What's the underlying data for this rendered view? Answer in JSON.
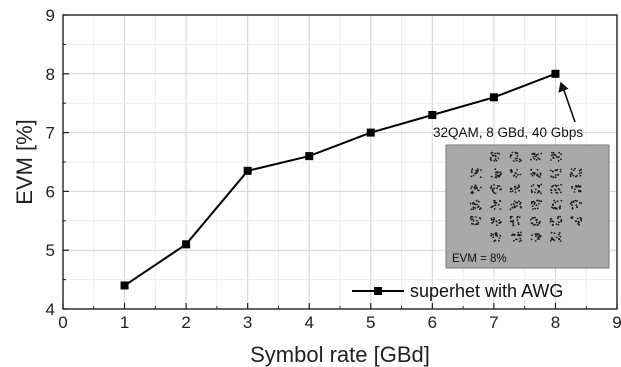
{
  "chart_data": {
    "type": "line",
    "xlabel": "Symbol rate [GBd]",
    "ylabel": "EVM [%]",
    "xlim": [
      0,
      9
    ],
    "ylim": [
      4,
      9
    ],
    "x_ticks": [
      "0",
      "1",
      "2",
      "3",
      "4",
      "5",
      "6",
      "7",
      "8",
      "9"
    ],
    "y_ticks": [
      "4",
      "5",
      "6",
      "7",
      "8",
      "9"
    ],
    "grid": true,
    "legend_position": "bottom-right",
    "series": [
      {
        "name": "superhet with AWG",
        "marker": "square",
        "color": "#000000",
        "x": [
          1,
          2,
          3,
          4,
          5,
          6,
          7,
          8
        ],
        "y": [
          4.4,
          5.1,
          6.35,
          6.6,
          7.0,
          7.3,
          7.6,
          8.0
        ]
      }
    ],
    "annotation": {
      "text": "32QAM, 8 GBd, 40 Gbps",
      "points_to": {
        "x": 8,
        "y": 8.0
      }
    },
    "inset": {
      "label": "EVM = 8%",
      "background": "#a9a9a9",
      "content": "32QAM constellation diagram"
    }
  }
}
